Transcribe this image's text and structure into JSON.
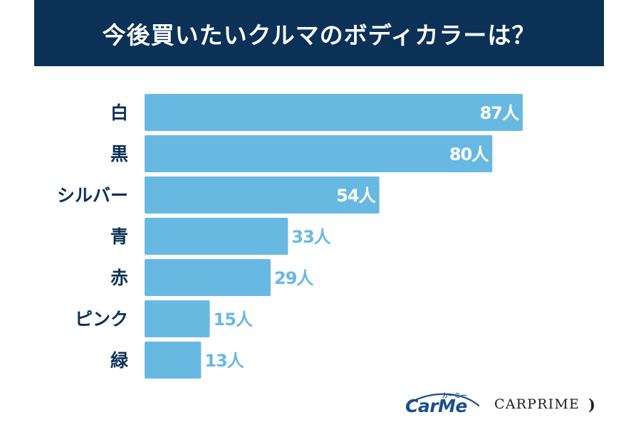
{
  "title": "今後買いたいクルマのボディカラーは？",
  "colors": {
    "title_bg": "#0b3157",
    "bar": "#68b9e2",
    "label": "#0b3157",
    "value_inside": "#ffffff",
    "value_outside": "#68b9e2"
  },
  "chart_data": {
    "type": "bar",
    "orientation": "horizontal",
    "categories": [
      "白",
      "黒",
      "シルバー",
      "青",
      "赤",
      "ピンク",
      "緑"
    ],
    "values": [
      87,
      80,
      54,
      33,
      29,
      15,
      13
    ],
    "value_labels": [
      "87人",
      "80人",
      "54人",
      "33人",
      "29人",
      "15人",
      "13人"
    ],
    "unit": "人",
    "grid": false,
    "legend": "none"
  },
  "logos": {
    "carme_main": "CarMe",
    "carme_sub": "カーミー",
    "carprime": "CARPRIME",
    "carprime_mark": ")"
  }
}
